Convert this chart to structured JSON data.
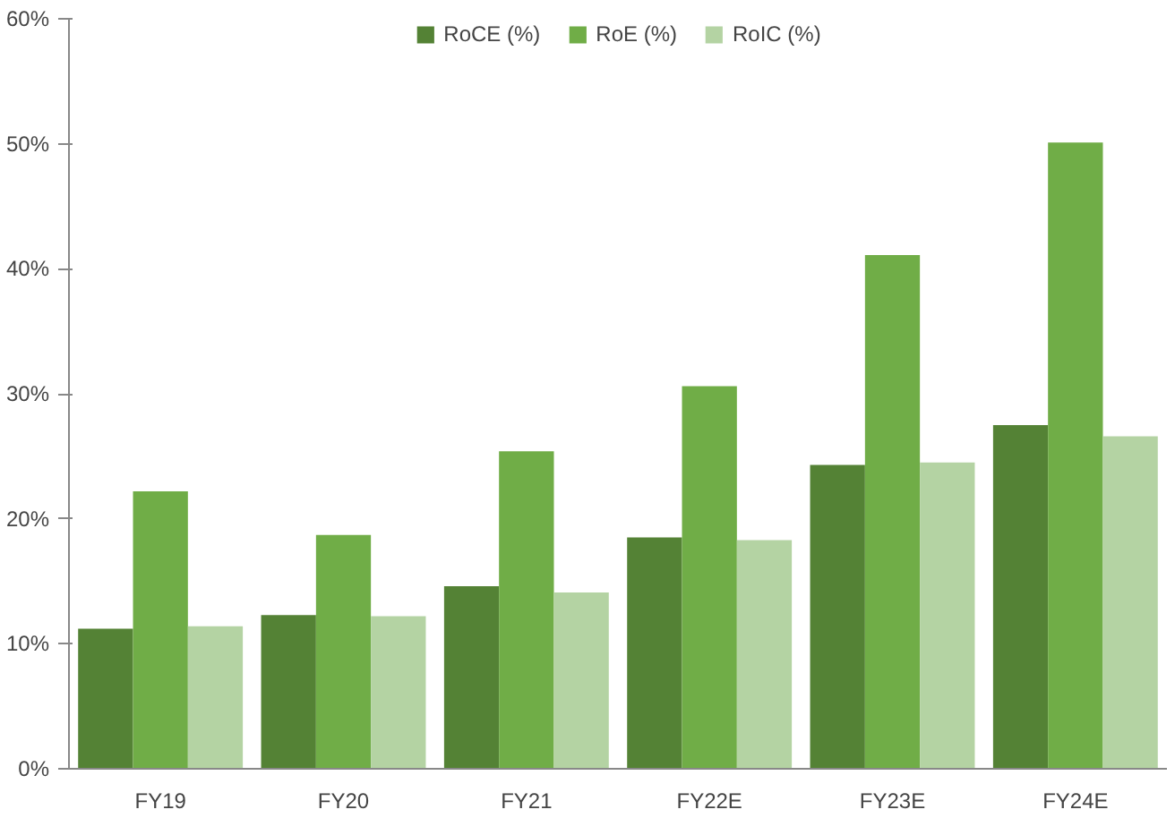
{
  "chart_data": {
    "type": "bar",
    "categories": [
      "FY19",
      "FY20",
      "FY21",
      "FY22E",
      "FY23E",
      "FY24E"
    ],
    "series": [
      {
        "name": "RoCE (%)",
        "color": "#548235",
        "values": [
          11.2,
          12.3,
          14.6,
          18.5,
          24.3,
          27.5
        ]
      },
      {
        "name": "RoE (%)",
        "color": "#70ad47",
        "values": [
          22.2,
          18.7,
          25.4,
          30.6,
          41.1,
          50.1
        ]
      },
      {
        "name": "RoIC (%)",
        "color": "#b4d3a3",
        "values": [
          11.4,
          12.2,
          14.1,
          18.3,
          24.5,
          26.6
        ]
      }
    ],
    "ylim": [
      0,
      60
    ],
    "yticks": [
      {
        "value": 0,
        "label": "0%"
      },
      {
        "value": 10,
        "label": "10%"
      },
      {
        "value": 20,
        "label": "20%"
      },
      {
        "value": 30,
        "label": "30%"
      },
      {
        "value": 40,
        "label": "40%"
      },
      {
        "value": 50,
        "label": "50%"
      },
      {
        "value": 60,
        "label": "60%"
      }
    ],
    "grid": false,
    "legend": "top"
  }
}
